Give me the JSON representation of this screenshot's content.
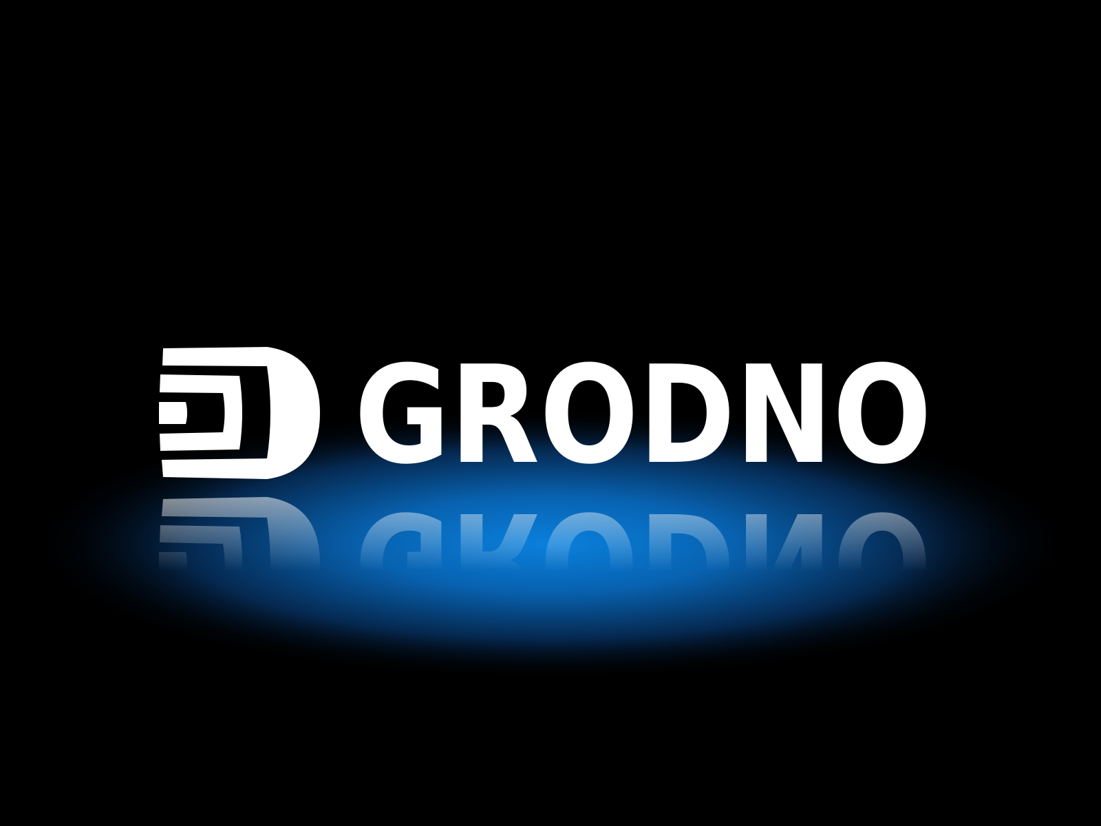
{
  "logo": {
    "text": "GRODNO"
  }
}
